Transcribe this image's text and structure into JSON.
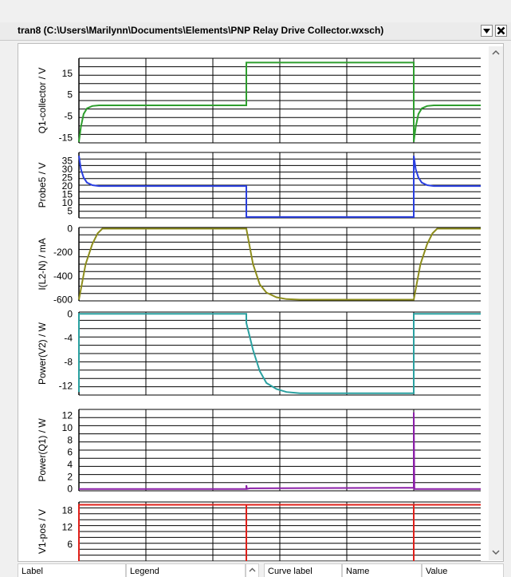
{
  "window": {
    "title": "tran8 (C:\\Users\\Marilynn\\Documents\\Elements\\PNP Relay Drive Collector.wxsch)"
  },
  "bottom_headers": {
    "label": "Label",
    "legend": "Legend",
    "curve_label": "Curve label",
    "name": "Name",
    "value": "Value"
  },
  "icons": {
    "dropdown": "chevron-down-icon",
    "close": "close-icon",
    "scroll_up": "arrow-up-icon",
    "scroll_down": "arrow-down-icon"
  },
  "chart_data": [
    {
      "type": "line",
      "ylabel": "Q1-collector / V",
      "yticks": [
        15,
        5,
        -5,
        -15
      ],
      "ylim": [
        -17.5,
        22
      ],
      "color": "#2e9e2e",
      "series": [
        {
          "points": [
            [
              0,
              -17
            ],
            [
              0.3,
              -10
            ],
            [
              0.7,
              -4
            ],
            [
              1.2,
              -1.4
            ],
            [
              2,
              -0.3
            ],
            [
              3,
              0
            ],
            [
              25,
              0
            ],
            [
              25,
              20
            ],
            [
              50,
              20
            ],
            [
              50,
              -17
            ],
            [
              50.3,
              -10
            ],
            [
              50.7,
              -4
            ],
            [
              51.2,
              -1.4
            ],
            [
              52,
              -0.3
            ],
            [
              53,
              0
            ],
            [
              60,
              0
            ]
          ]
        }
      ]
    },
    {
      "type": "line",
      "ylabel": "Probe5 / V",
      "yticks": [
        35,
        30,
        25,
        20,
        15,
        10,
        5
      ],
      "ylim": [
        1,
        40
      ],
      "color": "#2a3fe0",
      "series": [
        {
          "points": [
            [
              0,
              38
            ],
            [
              0.3,
              30
            ],
            [
              0.7,
              25
            ],
            [
              1.2,
              22
            ],
            [
              2,
              20.5
            ],
            [
              3,
              20
            ],
            [
              25,
              20
            ],
            [
              25,
              1.5
            ],
            [
              50,
              1.5
            ],
            [
              50,
              38
            ],
            [
              50.3,
              30
            ],
            [
              50.7,
              25
            ],
            [
              51.2,
              22
            ],
            [
              52,
              20.5
            ],
            [
              53,
              20
            ],
            [
              60,
              20
            ]
          ]
        }
      ]
    },
    {
      "type": "line",
      "ylabel": "I(L2-N) / mA",
      "yticks": [
        0,
        -200,
        -400,
        -600
      ],
      "ylim": [
        -610,
        10
      ],
      "color": "#8d8d1c",
      "series": [
        {
          "points": [
            [
              0,
              -600
            ],
            [
              1,
              -300
            ],
            [
              2,
              -130
            ],
            [
              2.8,
              -40
            ],
            [
              3.5,
              0
            ],
            [
              25,
              0
            ],
            [
              26,
              -300
            ],
            [
              27,
              -470
            ],
            [
              28,
              -540
            ],
            [
              29.5,
              -580
            ],
            [
              31,
              -595
            ],
            [
              33,
              -600
            ],
            [
              50,
              -600
            ],
            [
              50,
              -600
            ],
            [
              51,
              -300
            ],
            [
              52,
              -130
            ],
            [
              52.8,
              -40
            ],
            [
              53.5,
              0
            ],
            [
              60,
              0
            ]
          ]
        }
      ]
    },
    {
      "type": "line",
      "ylabel": "Power(V2) / W",
      "yticks": [
        0,
        -4,
        -8,
        -12
      ],
      "ylim": [
        -13.5,
        0.3
      ],
      "color": "#2aa0a0",
      "series": [
        {
          "points": [
            [
              0,
              -13
            ],
            [
              0,
              0
            ],
            [
              25,
              0
            ],
            [
              25,
              -1.5
            ],
            [
              26,
              -6
            ],
            [
              27,
              -9.5
            ],
            [
              28,
              -11.5
            ],
            [
              29.5,
              -12.5
            ],
            [
              31,
              -13
            ],
            [
              33,
              -13.2
            ],
            [
              50,
              -13.2
            ],
            [
              50,
              0
            ],
            [
              60,
              0
            ]
          ]
        }
      ]
    },
    {
      "type": "line",
      "ylabel": "Power(Q1) / W",
      "yticks": [
        12,
        10,
        8,
        6,
        4,
        2,
        0
      ],
      "ylim": [
        -0.3,
        13
      ],
      "color": "#8b1fa8",
      "series": [
        {
          "points": [
            [
              0,
              0
            ],
            [
              25,
              0
            ],
            [
              25,
              0.6
            ],
            [
              25.1,
              0
            ],
            [
              25.5,
              0.1
            ],
            [
              50,
              0.2
            ],
            [
              50,
              12.5
            ],
            [
              50.1,
              0
            ],
            [
              60,
              0
            ]
          ]
        }
      ]
    },
    {
      "type": "line",
      "ylabel": "V1-pos / V",
      "yticks": [
        18,
        12,
        6
      ],
      "ylim": [
        0,
        21
      ],
      "color": "#e0201a",
      "series": [
        {
          "points": [
            [
              0,
              0
            ],
            [
              0,
              20
            ],
            [
              25,
              20
            ],
            [
              25,
              0
            ],
            [
              25,
              20
            ],
            [
              50,
              20
            ],
            [
              50,
              0
            ],
            [
              50,
              20
            ],
            [
              60,
              20
            ]
          ]
        }
      ]
    }
  ]
}
